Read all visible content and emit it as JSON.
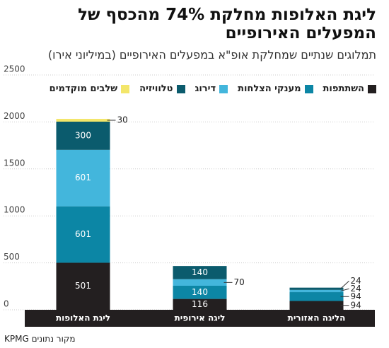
{
  "chart_data": {
    "type": "stacked_bar",
    "title": "ליגת האלופות מחלקת 74% מהכסף של המפעלים האירופיים",
    "subtitle": "תמלוגים שנתיים שמחלקת אופ\"א במפעלים האירופיים (במיליוני אירו)",
    "source": "מקור נתונים KPMG",
    "categories": [
      "ליגת האלופות",
      "ליגה אירופית",
      "הליגה האזורית"
    ],
    "series": [
      {
        "name": "השתתפות",
        "color": "#231f20",
        "values": [
          501,
          116,
          94
        ]
      },
      {
        "name": "מענקי הצלחות",
        "color": "#0c86a5",
        "values": [
          601,
          140,
          94
        ]
      },
      {
        "name": "דירוג",
        "color": "#43b6dc",
        "values": [
          601,
          70,
          24
        ]
      },
      {
        "name": "טלוויזיה",
        "color": "#0b5b6d",
        "values": [
          300,
          140,
          24
        ]
      },
      {
        "name": "שלבים מוקדמים",
        "color": "#f3e66a",
        "values": [
          30,
          null,
          null
        ]
      }
    ],
    "ylim": [
      0,
      2500
    ],
    "yticks": [
      0,
      500,
      1000,
      1500,
      2000,
      2500
    ],
    "grid": true
  }
}
